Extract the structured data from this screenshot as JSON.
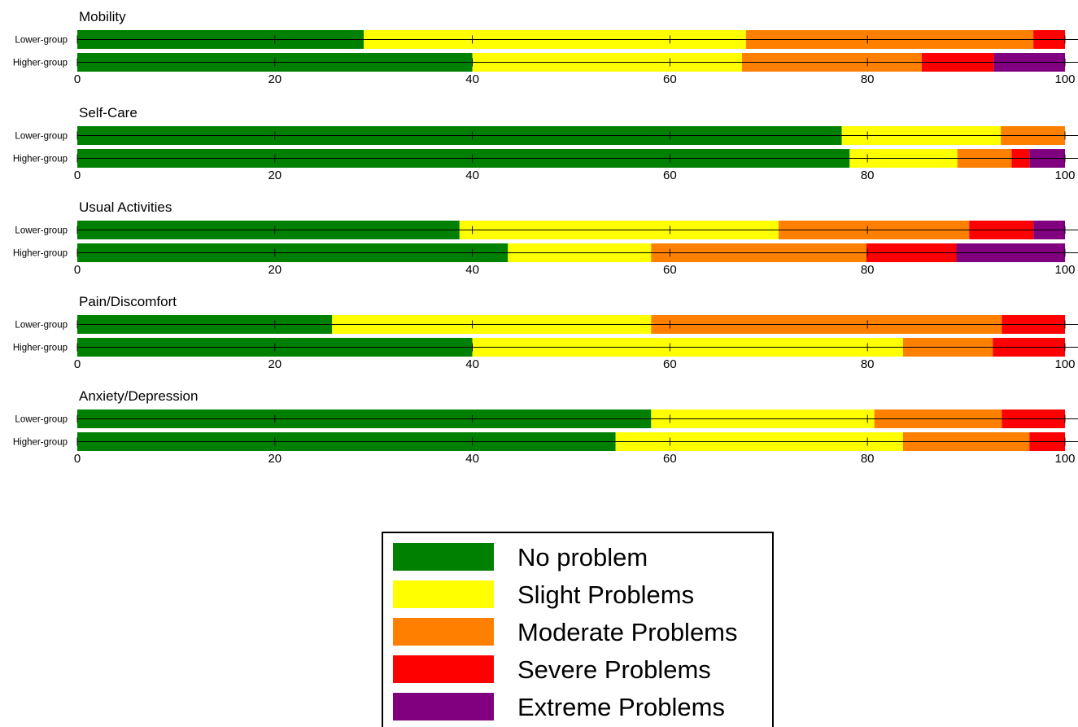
{
  "chart_data": {
    "type": "bar",
    "orientation": "horizontal",
    "stacked": true,
    "xlim": [
      0,
      100
    ],
    "xticks": [
      "0",
      "20",
      "40",
      "60",
      "80",
      "100"
    ],
    "categories_per_panel": [
      "Lower-group",
      "Higher-group"
    ],
    "legend": {
      "placement": "bottom-center",
      "entries": [
        {
          "label": "No problem",
          "color": "#008000"
        },
        {
          "label": "Slight Problems",
          "color": "#ffff00"
        },
        {
          "label": "Moderate Problems",
          "color": "#ff8000"
        },
        {
          "label": "Severe Problems",
          "color": "#ff0000"
        },
        {
          "label": "Extreme Problems",
          "color": "#800080"
        }
      ]
    },
    "panels": [
      {
        "title": "Mobility",
        "bars": [
          {
            "group": "Lower-group",
            "values": [
              29.0,
              38.7,
              29.1,
              3.2,
              0.0
            ]
          },
          {
            "group": "Higher-group",
            "values": [
              40.0,
              27.3,
              18.2,
              7.3,
              7.2
            ]
          }
        ]
      },
      {
        "title": "Self-Care",
        "bars": [
          {
            "group": "Lower-group",
            "values": [
              77.4,
              16.1,
              6.5,
              0.0,
              0.0
            ]
          },
          {
            "group": "Higher-group",
            "values": [
              78.2,
              10.9,
              5.5,
              1.8,
              3.6
            ]
          }
        ]
      },
      {
        "title": "Usual Activities",
        "bars": [
          {
            "group": "Lower-group",
            "values": [
              38.7,
              32.3,
              19.3,
              6.5,
              3.2
            ]
          },
          {
            "group": "Higher-group",
            "values": [
              43.6,
              14.5,
              21.8,
              9.1,
              11.0
            ]
          }
        ]
      },
      {
        "title": "Pain/Discomfort",
        "bars": [
          {
            "group": "Lower-group",
            "values": [
              25.8,
              32.3,
              35.5,
              6.4,
              0.0
            ]
          },
          {
            "group": "Higher-group",
            "values": [
              40.0,
              43.6,
              9.1,
              7.3,
              0.0
            ]
          }
        ]
      },
      {
        "title": "Anxiety/Depression",
        "bars": [
          {
            "group": "Lower-group",
            "values": [
              58.1,
              22.6,
              12.9,
              6.4,
              0.0
            ]
          },
          {
            "group": "Higher-group",
            "values": [
              54.5,
              29.1,
              12.8,
              3.6,
              0.0
            ]
          }
        ]
      }
    ]
  }
}
